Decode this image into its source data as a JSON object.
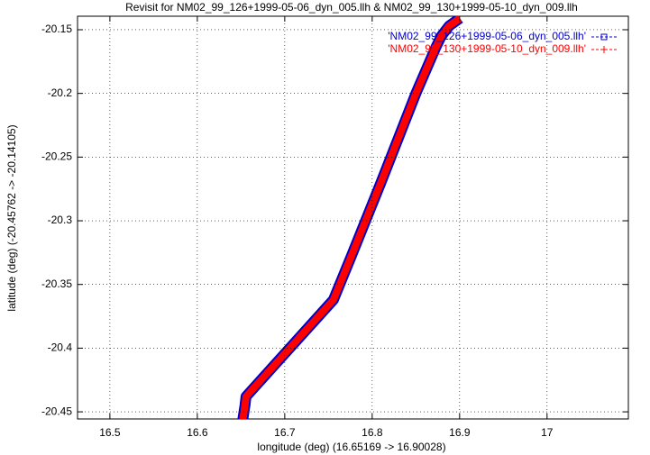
{
  "chart_data": {
    "type": "line",
    "title": "Revisit for NM02_99_126+1999-05-06_dyn_005.llh & NM02_99_130+1999-05-10_dyn_009.llh",
    "x_label": "longitude (deg) (16.65169 -> 16.90028)",
    "y_label": "latitude (deg) (-20.45762 -> -20.14105)",
    "xlim": [
      16.463,
      17.093
    ],
    "ylim": [
      -20.4556,
      -20.1394
    ],
    "xticks": [
      16.5,
      16.6,
      16.7,
      16.8,
      16.9,
      17
    ],
    "yticks": [
      -20.45,
      -20.4,
      -20.35,
      -20.3,
      -20.25,
      -20.2,
      -20.15
    ],
    "grid": true,
    "series": [
      {
        "name": "'NM02_99_126+1999-05-06_dyn_005.llh'",
        "color": "#0000cc",
        "x": [
          16.6517,
          16.6545,
          16.6557,
          16.7057,
          16.7557,
          16.776,
          16.81,
          16.85,
          16.872,
          16.879,
          16.888,
          16.9003
        ],
        "values": [
          -20.4576,
          -20.445,
          -20.438,
          -20.4,
          -20.362,
          -20.328,
          -20.27,
          -20.2,
          -20.165,
          -20.155,
          -20.147,
          -20.141
        ]
      },
      {
        "name": "'NM02_99_130+1999-05-10_dyn_009.llh'",
        "color": "#ff0000",
        "x": [
          16.6517,
          16.6545,
          16.6557,
          16.7057,
          16.7557,
          16.776,
          16.81,
          16.85,
          16.872,
          16.879,
          16.888,
          16.9003
        ],
        "values": [
          -20.4576,
          -20.445,
          -20.438,
          -20.4,
          -20.362,
          -20.328,
          -20.27,
          -20.2,
          -20.165,
          -20.155,
          -20.147,
          -20.141
        ]
      }
    ]
  }
}
